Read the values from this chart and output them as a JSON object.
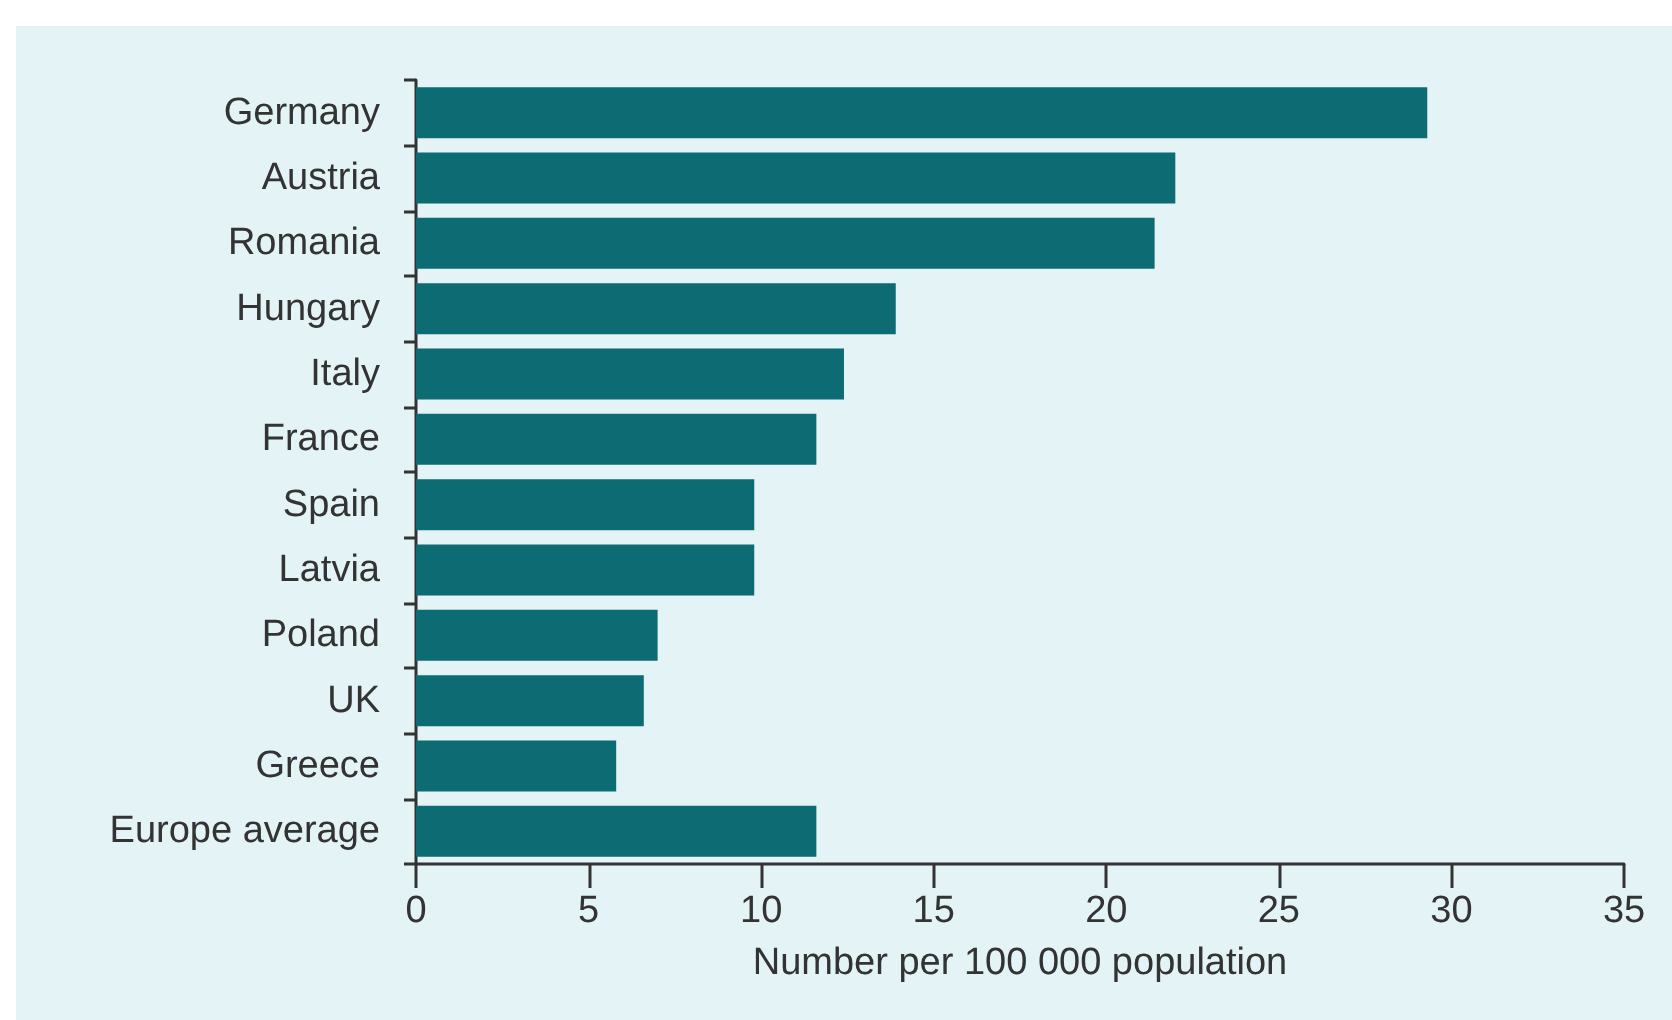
{
  "chart_data": {
    "type": "bar",
    "orientation": "horizontal",
    "categories": [
      "Germany",
      "Austria",
      "Romania",
      "Hungary",
      "Italy",
      "France",
      "Spain",
      "Latvia",
      "Poland",
      "UK",
      "Greece",
      "Europe average"
    ],
    "values": [
      29.3,
      22.0,
      21.4,
      13.9,
      12.4,
      11.6,
      9.8,
      9.8,
      7.0,
      6.6,
      5.8,
      11.6
    ],
    "color": "#0d6b73",
    "xlabel": "Number per 100 000 population",
    "xlim": [
      0,
      35
    ],
    "xticks": [
      0,
      5,
      10,
      15,
      20,
      25,
      30,
      35
    ],
    "grid": false
  }
}
